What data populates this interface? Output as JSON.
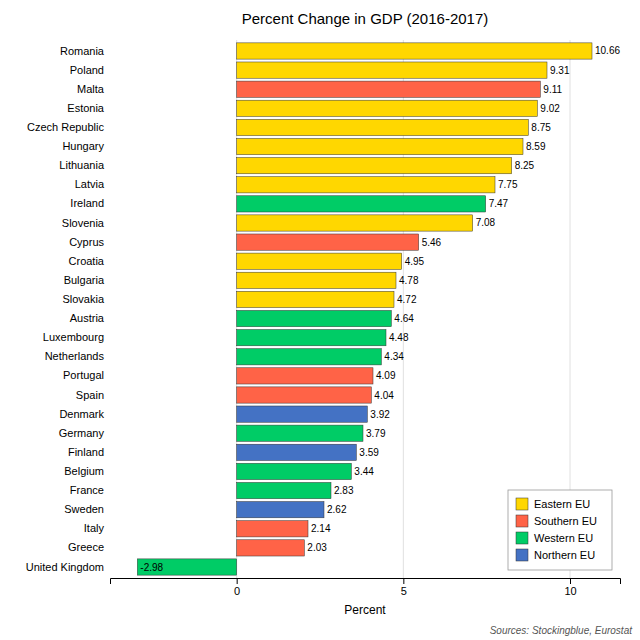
{
  "chart_data": {
    "type": "bar",
    "orientation": "horizontal",
    "title": "Percent Change in GDP (2016-2017)",
    "x_label": "Percent",
    "annotations": [
      "Sources: Stockingblue, Eurostat"
    ],
    "categories": [
      "Romania",
      "Poland",
      "Malta",
      "Estonia",
      "Czech Republic",
      "Hungary",
      "Lithuania",
      "Latvia",
      "Ireland",
      "Slovenia",
      "Cyprus",
      "Croatia",
      "Bulgaria",
      "Slovakia",
      "Austria",
      "Luxembourg",
      "Netherlands",
      "Portugal",
      "Spain",
      "Denmark",
      "Germany",
      "Finland",
      "Belgium",
      "France",
      "Sweden",
      "Italy",
      "Greece",
      "United Kingdom"
    ],
    "series": [
      {
        "name": "Eastern EU",
        "color": "#FFD700",
        "values": [
          10.66,
          9.31,
          null,
          9.02,
          8.75,
          8.59,
          8.25,
          7.75,
          null,
          7.08,
          null,
          4.95,
          4.78,
          4.72,
          null,
          null,
          null,
          null,
          null,
          null,
          null,
          null,
          null,
          null,
          null,
          null,
          null,
          null
        ]
      },
      {
        "name": "Southern EU",
        "color": "#FF6347",
        "values": [
          null,
          null,
          9.11,
          null,
          null,
          null,
          null,
          null,
          null,
          null,
          5.46,
          null,
          null,
          null,
          null,
          null,
          null,
          4.09,
          4.04,
          null,
          null,
          null,
          null,
          null,
          null,
          2.14,
          2.03,
          null
        ]
      },
      {
        "name": "Western EU",
        "color": "#00CC66",
        "values": [
          null,
          null,
          null,
          null,
          null,
          null,
          null,
          null,
          7.47,
          null,
          null,
          null,
          null,
          null,
          4.64,
          4.48,
          4.34,
          null,
          null,
          null,
          3.79,
          null,
          3.44,
          2.83,
          null,
          null,
          null,
          -2.98
        ]
      },
      {
        "name": "Northern EU",
        "color": "#4472C4",
        "values": [
          null,
          null,
          null,
          null,
          null,
          null,
          null,
          null,
          null,
          null,
          null,
          null,
          null,
          null,
          null,
          null,
          null,
          null,
          null,
          3.92,
          null,
          3.59,
          null,
          null,
          2.62,
          null,
          null,
          null
        ]
      }
    ],
    "xlim": [
      -3.8,
      11.5
    ],
    "xticks": [
      0,
      5,
      10
    ],
    "grid": true,
    "legend": "lower right",
    "data_labels": true
  }
}
